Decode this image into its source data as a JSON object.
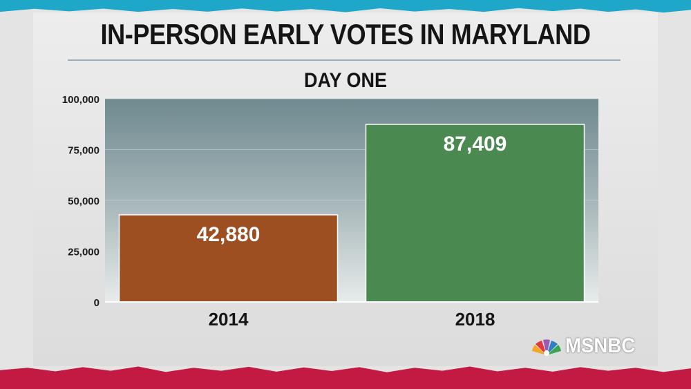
{
  "chart_data": {
    "type": "bar",
    "title": "IN-PERSON EARLY VOTES IN MARYLAND",
    "subtitle": "DAY ONE",
    "xlabel": "",
    "ylabel": "",
    "categories": [
      "2014",
      "2018"
    ],
    "values": [
      42880,
      87409
    ],
    "value_labels": [
      "42,880",
      "87,409"
    ],
    "bar_colors": [
      "#9e4f22",
      "#4a8a50"
    ],
    "ylim": [
      0,
      100000
    ],
    "yticks": [
      0,
      25000,
      50000,
      75000,
      100000
    ],
    "ytick_labels": [
      "0",
      "25,000",
      "50,000",
      "75,000",
      "100,000"
    ],
    "grid": true,
    "legend": "none"
  },
  "branding": {
    "network": "MSNBC",
    "icon": "peacock-icon",
    "colors": {
      "accent_top": "#1fa7c9",
      "accent_bottom": "#c21a42"
    }
  }
}
